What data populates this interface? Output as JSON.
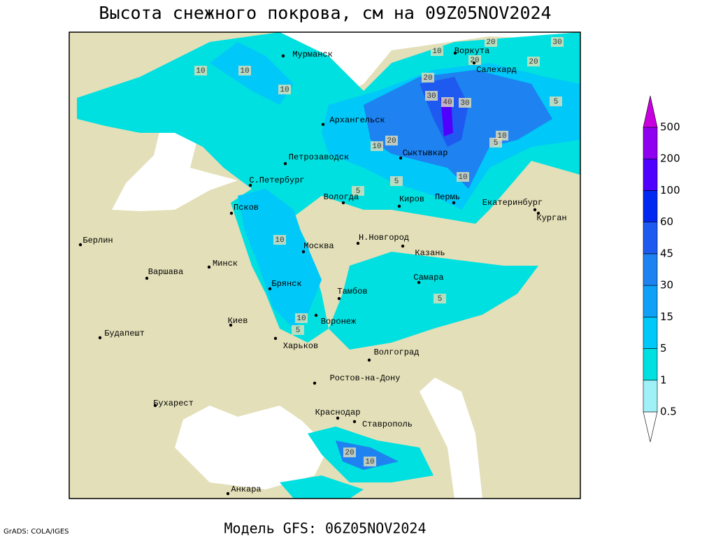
{
  "title": "Высота снежного покрова, см на 09Z05NOV2024",
  "model_run": "Модель GFS: 06Z05NOV2024",
  "credit": "GrADS: COLA/IGES",
  "legend": {
    "levels": [
      0.5,
      1,
      5,
      15,
      30,
      45,
      60,
      100,
      200,
      500
    ],
    "colors": [
      "#ffffff",
      "#a0f0f8",
      "#00e0e0",
      "#00c8f8",
      "#10a0f8",
      "#1e82f0",
      "#1e5af0",
      "#0028f0",
      "#5000ff",
      "#9000f0",
      "#c800e0"
    ]
  },
  "cities": [
    "Мурманск",
    "Воркута",
    "Салехард",
    "Архангельск",
    "Сыктывкар",
    "Петрозаводск",
    "С.Петербург",
    "Вологда",
    "Киров",
    "Пермь",
    "Екатеринбург",
    "Курган",
    "Псков",
    "Берлин",
    "Н.Новгород",
    "Москва",
    "Казань",
    "Минск",
    "Варшава",
    "Самара",
    "Брянск",
    "Тамбов",
    "Воронеж",
    "Киев",
    "Будапешт",
    "Харьков",
    "Волгоград",
    "Ростов-на-Дону",
    "Бухарест",
    "Краснодар",
    "Ставрополь",
    "Анкара"
  ],
  "contour_labels": [
    20,
    30,
    10,
    20,
    20,
    10,
    10,
    20,
    10,
    30,
    40,
    30,
    5,
    20,
    10,
    10,
    5,
    5,
    5,
    10,
    10,
    5,
    5,
    10,
    20,
    10
  ]
}
